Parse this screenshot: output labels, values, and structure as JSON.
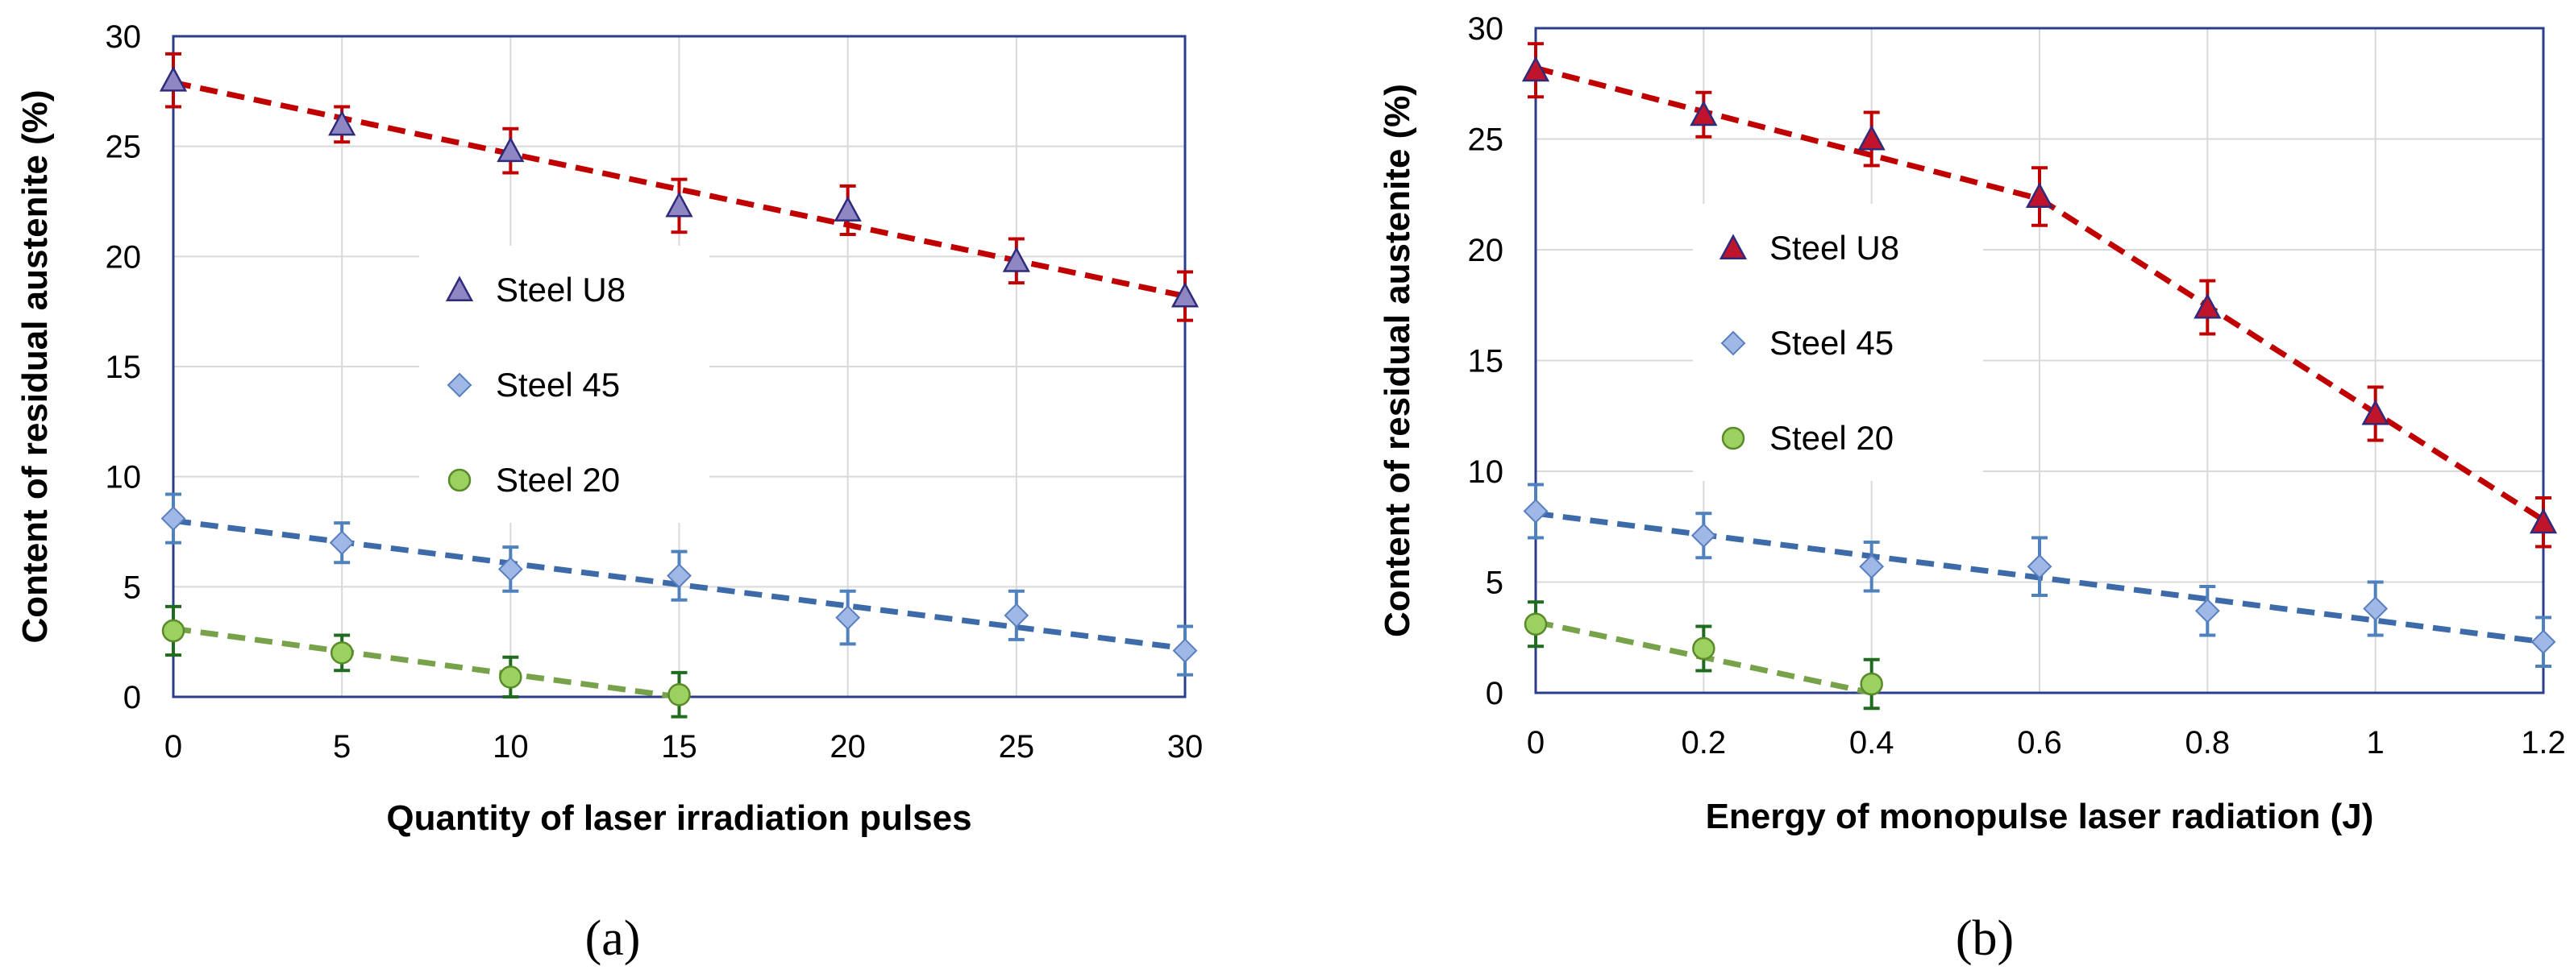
{
  "chart_data": [
    {
      "type": "scatter",
      "panel_label": "(a)",
      "xlabel": "Quantity of laser irradiation pulses",
      "ylabel": "Content of residual austenite  (%)",
      "xlim": [
        0,
        30
      ],
      "ylim": [
        0,
        30
      ],
      "xticks": [
        0,
        5,
        10,
        15,
        20,
        25,
        30
      ],
      "xtick_labels": [
        "0",
        "5",
        "10",
        "15",
        "20",
        "25",
        "30"
      ],
      "yticks": [
        0,
        5,
        10,
        15,
        20,
        25,
        30
      ],
      "ytick_labels": [
        "0",
        "5",
        "10",
        "15",
        "20",
        "25",
        "30"
      ],
      "grid": true,
      "legend_position": "center",
      "series": [
        {
          "name": "Steel U8",
          "marker": "triangle",
          "marker_color": "#8e87c4",
          "line_color": "#c00000",
          "error_color": "#c00000",
          "x": [
            0,
            5,
            10,
            15,
            20,
            25,
            30
          ],
          "y": [
            28,
            26,
            24.8,
            22.3,
            22.1,
            19.8,
            18.2
          ],
          "err": [
            1.2,
            0.8,
            1,
            1.2,
            1.1,
            1,
            1.1
          ],
          "trend": [
            [
              0,
              27.9
            ],
            [
              30,
              18.2
            ]
          ]
        },
        {
          "name": "Steel 45",
          "marker": "diamond",
          "marker_color": "#9fb8e6",
          "line_color": "#3d6aa8",
          "error_color": "#4f81bd",
          "x": [
            0,
            5,
            10,
            15,
            20,
            25,
            30
          ],
          "y": [
            8.1,
            7,
            5.8,
            5.5,
            3.6,
            3.7,
            2.1
          ],
          "err": [
            1.1,
            0.9,
            1,
            1.1,
            1.2,
            1.1,
            1.1
          ],
          "trend": [
            [
              0,
              8
            ],
            [
              30,
              2.2
            ]
          ]
        },
        {
          "name": "Steel 20",
          "marker": "circle",
          "marker_color": "#9bd160",
          "line_color": "#77a24a",
          "error_color": "#1f6b1f",
          "x": [
            0,
            5,
            10,
            15
          ],
          "y": [
            3,
            2,
            0.9,
            0.1
          ],
          "err": [
            1.1,
            0.8,
            0.9,
            1
          ],
          "trend": [
            [
              0,
              3.1
            ],
            [
              15,
              0
            ]
          ]
        }
      ]
    },
    {
      "type": "scatter",
      "panel_label": "(b)",
      "xlabel": "Energy of monopulse laser radiation  (J)",
      "ylabel": "Content of residual austenite  (%)",
      "xlim": [
        0,
        1.2
      ],
      "ylim": [
        0,
        30
      ],
      "xticks": [
        0,
        0.2,
        0.4,
        0.6,
        0.8,
        1,
        1.2
      ],
      "xtick_labels": [
        "0",
        "0.2",
        "0.4",
        "0.6",
        "0.8",
        "1",
        "1.2"
      ],
      "yticks": [
        0,
        5,
        10,
        15,
        20,
        25,
        30
      ],
      "ytick_labels": [
        "0",
        "5",
        "10",
        "15",
        "20",
        "25",
        "30"
      ],
      "grid": true,
      "legend_position": "center-left",
      "series": [
        {
          "name": "Steel U8",
          "marker": "triangle",
          "marker_color": "#c0142c",
          "line_color": "#c00000",
          "error_color": "#c00000",
          "x": [
            0,
            0.2,
            0.4,
            0.6,
            0.8,
            1.0,
            1.2
          ],
          "y": [
            28.1,
            26.1,
            25,
            22.4,
            17.4,
            12.6,
            7.7
          ],
          "err": [
            1.2,
            1,
            1.2,
            1.3,
            1.2,
            1.2,
            1.1
          ],
          "trend": [
            [
              0,
              28.2
            ],
            [
              0.6,
              22.3
            ],
            [
              1.2,
              7.8
            ]
          ]
        },
        {
          "name": "Steel 45",
          "marker": "diamond",
          "marker_color": "#9fb8e6",
          "line_color": "#3d6aa8",
          "error_color": "#4f81bd",
          "x": [
            0,
            0.2,
            0.4,
            0.6,
            0.8,
            1.0,
            1.2
          ],
          "y": [
            8.2,
            7.1,
            5.7,
            5.7,
            3.7,
            3.8,
            2.3
          ],
          "err": [
            1.2,
            1,
            1.1,
            1.3,
            1.1,
            1.2,
            1.1
          ],
          "trend": [
            [
              0,
              8.1
            ],
            [
              1.2,
              2.3
            ]
          ]
        },
        {
          "name": "Steel 20",
          "marker": "circle",
          "marker_color": "#9bd160",
          "line_color": "#77a24a",
          "error_color": "#1f6b1f",
          "x": [
            0,
            0.2,
            0.4
          ],
          "y": [
            3.1,
            2,
            0.4
          ],
          "err": [
            1,
            1,
            1.1
          ],
          "trend": [
            [
              0,
              3.2
            ],
            [
              0.4,
              0
            ]
          ]
        }
      ]
    }
  ]
}
